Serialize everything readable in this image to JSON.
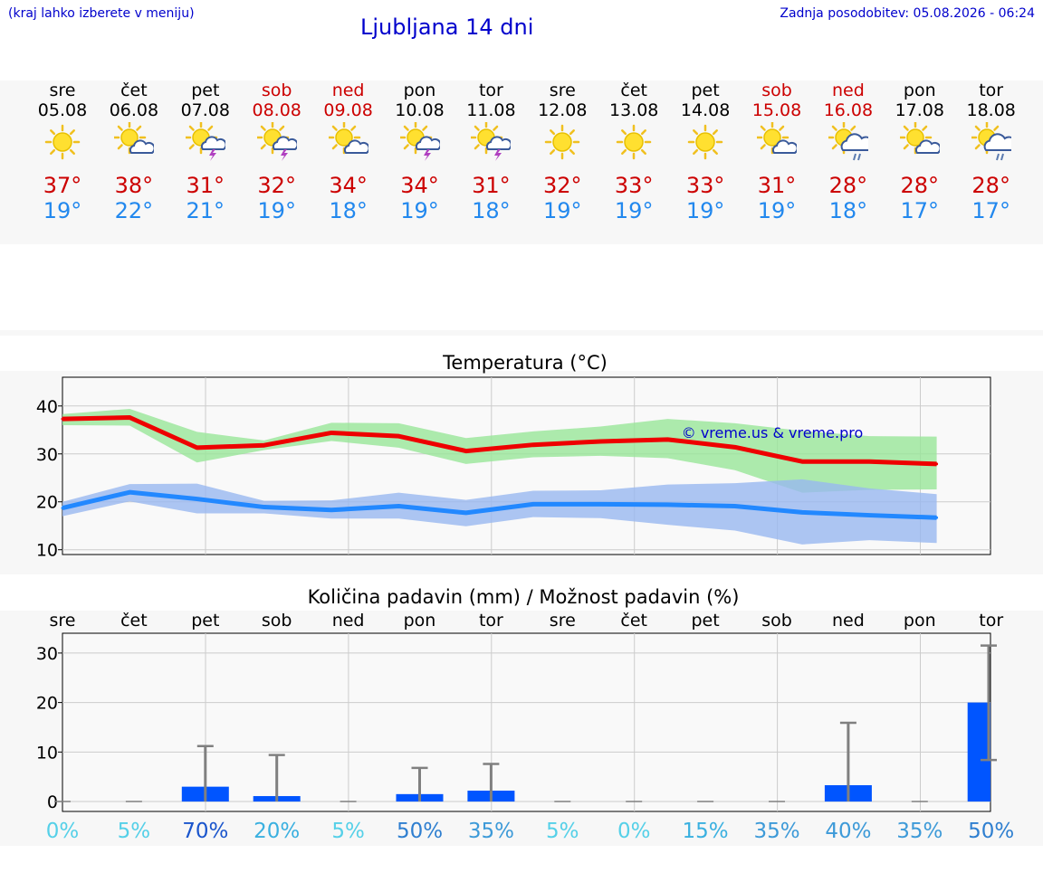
{
  "header": {
    "left_note": "(kraj lahko izberete v meniju)",
    "title": "Ljubljana 14 dni",
    "last_update": "Zadnja posodobitev: 05.08.2026 - 06:24"
  },
  "days": [
    {
      "name": "sre",
      "date": "05.08",
      "icon": "sun-icon",
      "max": "37°",
      "min": "19°",
      "weekend": false
    },
    {
      "name": "čet",
      "date": "06.08",
      "icon": "sun-cloud-icon",
      "max": "38°",
      "min": "22°",
      "weekend": false
    },
    {
      "name": "pet",
      "date": "07.08",
      "icon": "sun-storm-icon",
      "max": "31°",
      "min": "21°",
      "weekend": false
    },
    {
      "name": "sob",
      "date": "08.08",
      "icon": "sun-storm-icon",
      "max": "32°",
      "min": "19°",
      "weekend": true
    },
    {
      "name": "ned",
      "date": "09.08",
      "icon": "sun-cloud-icon",
      "max": "34°",
      "min": "18°",
      "weekend": true
    },
    {
      "name": "pon",
      "date": "10.08",
      "icon": "sun-storm-icon",
      "max": "34°",
      "min": "19°",
      "weekend": false
    },
    {
      "name": "tor",
      "date": "11.08",
      "icon": "sun-storm-icon",
      "max": "31°",
      "min": "18°",
      "weekend": false
    },
    {
      "name": "sre",
      "date": "12.08",
      "icon": "sun-icon",
      "max": "32°",
      "min": "19°",
      "weekend": false
    },
    {
      "name": "čet",
      "date": "13.08",
      "icon": "sun-icon",
      "max": "33°",
      "min": "19°",
      "weekend": false
    },
    {
      "name": "pet",
      "date": "14.08",
      "icon": "sun-icon",
      "max": "33°",
      "min": "19°",
      "weekend": false
    },
    {
      "name": "sob",
      "date": "15.08",
      "icon": "sun-cloud-icon",
      "max": "31°",
      "min": "19°",
      "weekend": true
    },
    {
      "name": "ned",
      "date": "16.08",
      "icon": "sun-rain-icon",
      "max": "28°",
      "min": "18°",
      "weekend": true
    },
    {
      "name": "pon",
      "date": "17.08",
      "icon": "sun-cloud-icon",
      "max": "28°",
      "min": "17°",
      "weekend": false
    },
    {
      "name": "tor",
      "date": "18.08",
      "icon": "sun-rain-icon",
      "max": "28°",
      "min": "17°",
      "weekend": false
    }
  ],
  "colors": {
    "max_temp": "#ee0000",
    "min_temp": "#2288ff",
    "max_band": "#99e699",
    "min_band": "#99b8f0",
    "precip_bar": "#0055ff",
    "error_bar": "#808080",
    "watermark": "#0000cc"
  },
  "chart_data": [
    {
      "type": "line",
      "title": "Temperatura (°C)",
      "watermark": "© vreme.us & vreme.pro",
      "ylim": [
        9,
        46
      ],
      "yticks": [
        "10",
        "20",
        "30",
        "40"
      ],
      "x_points": 14.8,
      "series": [
        {
          "values": [
            37.3,
            37.6,
            31.3,
            31.8,
            34.4,
            33.7,
            30.6,
            31.9,
            32.6,
            33.0,
            31.4,
            28.4,
            28.4,
            27.9
          ],
          "band_low": [
            36.0,
            35.9,
            28.2,
            30.8,
            32.7,
            31.3,
            27.9,
            29.3,
            29.6,
            29.1,
            26.6,
            21.9,
            22.5,
            22.6
          ],
          "band_high": [
            38.3,
            39.4,
            34.6,
            32.8,
            36.5,
            36.4,
            33.3,
            34.7,
            35.7,
            37.3,
            36.4,
            34.8,
            33.7,
            33.6
          ]
        },
        {
          "values": [
            18.7,
            22.0,
            20.6,
            18.9,
            18.3,
            19.1,
            17.7,
            19.5,
            19.5,
            19.4,
            19.1,
            17.8,
            17.2,
            16.7
          ],
          "band_low": [
            17.0,
            20.1,
            17.6,
            17.6,
            16.5,
            16.5,
            14.9,
            16.8,
            16.6,
            15.2,
            14.0,
            11.1,
            12.0,
            11.4
          ],
          "band_high": [
            20.0,
            23.7,
            23.8,
            20.2,
            20.3,
            21.9,
            20.4,
            22.3,
            22.4,
            23.6,
            23.9,
            24.7,
            22.8,
            21.6
          ]
        }
      ]
    },
    {
      "type": "bar",
      "title": "Količina padavin (mm) / Možnost padavin (%)",
      "categories": [
        "sre",
        "čet",
        "pet",
        "sob",
        "ned",
        "pon",
        "tor",
        "sre",
        "čet",
        "pet",
        "sob",
        "ned",
        "pon",
        "tor"
      ],
      "ylim": [
        -2,
        34
      ],
      "yticks": [
        "0",
        "10",
        "20",
        "30"
      ],
      "values": [
        0,
        0,
        3.0,
        1.1,
        0,
        1.5,
        2.2,
        0,
        0,
        0,
        0,
        3.3,
        0,
        20
      ],
      "error_high": [
        0,
        0,
        11.2,
        9.4,
        0,
        6.8,
        7.6,
        0,
        0,
        0,
        0,
        15.9,
        0,
        31.5
      ],
      "error_low": [
        0,
        0,
        0,
        0,
        0,
        0,
        0,
        0,
        0,
        0,
        0,
        0,
        0,
        8.4
      ],
      "probability": [
        "0%",
        "5%",
        "70%",
        "20%",
        "5%",
        "50%",
        "35%",
        "5%",
        "0%",
        "15%",
        "35%",
        "40%",
        "35%",
        "50%"
      ],
      "probability_values": [
        0,
        5,
        70,
        20,
        5,
        50,
        35,
        5,
        0,
        15,
        35,
        40,
        35,
        50
      ]
    }
  ]
}
